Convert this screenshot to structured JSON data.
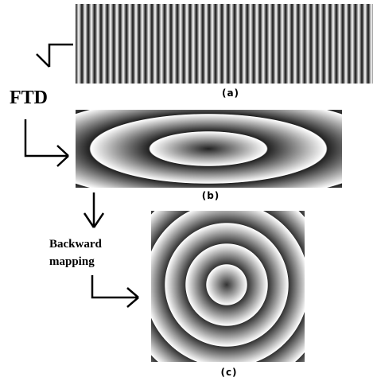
{
  "panels": [
    {
      "label": "(a)"
    },
    {
      "label": "(b)"
    },
    {
      "label": "(c)"
    }
  ],
  "steps": [
    {
      "label": "FTD"
    },
    {
      "lines": [
        "Backward",
        "mapping"
      ]
    }
  ]
}
